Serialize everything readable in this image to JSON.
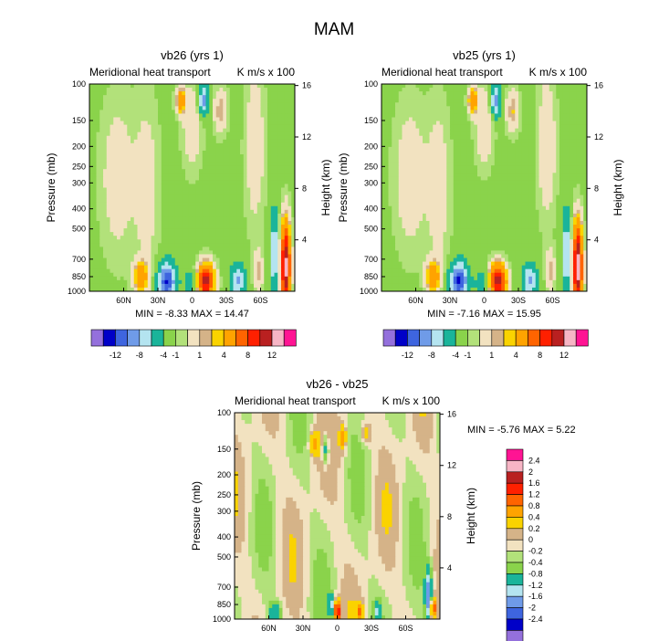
{
  "figure_title": "MAM",
  "colors": {
    "levels_12": [
      "#9470dc",
      "#0000c8",
      "#3e65df",
      "#6f9be8",
      "#b4e4f0",
      "#1ab49a",
      "#8ad34b",
      "#b2e17a",
      "#f2e2c0",
      "#d5b388",
      "#fad300",
      "#ffa300",
      "#ff6400",
      "#ff2000",
      "#b92020",
      "#f7b5c5",
      "#ff1493"
    ],
    "levels_diff": [
      "#9470dc",
      "#0000c8",
      "#3e65df",
      "#6f9be8",
      "#b4e4f0",
      "#1ab49a",
      "#8ad34b",
      "#b2e17a",
      "#f2e2c0",
      "#d5b388",
      "#fad300",
      "#ffa300",
      "#ff6400",
      "#ff2000",
      "#b92020",
      "#f7b5c5",
      "#ff1493"
    ]
  },
  "chart_data": [
    {
      "type": "heatmap",
      "title": "vb26 (yrs 1)",
      "left_string": "Meridional heat transport",
      "right_string": "K m/s x 100",
      "ylabel": "Pressure (mb)",
      "ylabel_right": "Height (km)",
      "x_ticks": [
        "60N",
        "30N",
        "0",
        "30S",
        "60S"
      ],
      "x_tick_lats": [
        60,
        30,
        0,
        -30,
        -60
      ],
      "xlim": [
        90,
        -90
      ],
      "y_ticks": [
        "100",
        "150",
        "200",
        "250",
        "300",
        "400",
        "500",
        "700",
        "850",
        "1000"
      ],
      "y_tick_values": [
        100,
        150,
        200,
        250,
        300,
        400,
        500,
        700,
        850,
        1000
      ],
      "ylim": [
        100,
        1000
      ],
      "height_ticks": [
        "16",
        "12",
        "8",
        "4"
      ],
      "height_tick_values": [
        16,
        12,
        8,
        4
      ],
      "min_label": "MIN = -8.33  MAX = 14.47",
      "min": -8.33,
      "max": 14.47,
      "colorbar_orientation": "horizontal",
      "colorbar_labels": [
        "-12",
        "-8",
        "-4",
        "-1",
        "1",
        "4",
        "8",
        "12"
      ],
      "levels": [
        -12,
        -10,
        -8,
        -6,
        -4,
        -2,
        -1,
        -0.5,
        0.5,
        1,
        2,
        4,
        6,
        8,
        10,
        12
      ]
    },
    {
      "type": "heatmap",
      "title": "vb25 (yrs 1)",
      "left_string": "Meridional heat transport",
      "right_string": "K m/s x 100",
      "ylabel": "Pressure (mb)",
      "ylabel_right": "Height (km)",
      "x_ticks": [
        "60N",
        "30N",
        "0",
        "30S",
        "60S"
      ],
      "x_tick_lats": [
        60,
        30,
        0,
        -30,
        -60
      ],
      "xlim": [
        90,
        -90
      ],
      "y_ticks": [
        "100",
        "150",
        "200",
        "250",
        "300",
        "400",
        "500",
        "700",
        "850",
        "1000"
      ],
      "y_tick_values": [
        100,
        150,
        200,
        250,
        300,
        400,
        500,
        700,
        850,
        1000
      ],
      "ylim": [
        100,
        1000
      ],
      "height_ticks": [
        "16",
        "12",
        "8",
        "4"
      ],
      "height_tick_values": [
        16,
        12,
        8,
        4
      ],
      "min_label": "MIN = -7.16  MAX = 15.95",
      "min": -7.16,
      "max": 15.95,
      "colorbar_orientation": "horizontal",
      "colorbar_labels": [
        "-12",
        "-8",
        "-4",
        "-1",
        "1",
        "4",
        "8",
        "12"
      ],
      "levels": [
        -12,
        -10,
        -8,
        -6,
        -4,
        -2,
        -1,
        -0.5,
        0.5,
        1,
        2,
        4,
        6,
        8,
        10,
        12
      ]
    },
    {
      "type": "heatmap",
      "title": "vb26 - vb25",
      "left_string": "Meridional heat transport",
      "right_string": "K m/s x 100",
      "ylabel": "Pressure (mb)",
      "ylabel_right": "Height (km)",
      "x_ticks": [
        "60N",
        "30N",
        "0",
        "30S",
        "60S"
      ],
      "x_tick_lats": [
        60,
        30,
        0,
        -30,
        -60
      ],
      "xlim": [
        90,
        -90
      ],
      "y_ticks": [
        "100",
        "150",
        "200",
        "250",
        "300",
        "400",
        "500",
        "700",
        "850",
        "1000"
      ],
      "y_tick_values": [
        100,
        150,
        200,
        250,
        300,
        400,
        500,
        700,
        850,
        1000
      ],
      "ylim": [
        100,
        1000
      ],
      "height_ticks": [
        "16",
        "12",
        "8",
        "4"
      ],
      "height_tick_values": [
        16,
        12,
        8,
        4
      ],
      "min_label": "MIN =  -5.76  MAX =   5.22",
      "min": -5.76,
      "max": 5.22,
      "colorbar_orientation": "vertical",
      "colorbar_labels": [
        "2.4",
        "2",
        "1.6",
        "1.2",
        "0.8",
        "0.4",
        "0.2",
        "0",
        "-0.2",
        "-0.4",
        "-0.8",
        "-1.2",
        "-1.6",
        "-2",
        "-2.4"
      ],
      "levels": [
        -2.4,
        -2,
        -1.6,
        -1.2,
        -0.8,
        -0.4,
        -0.2,
        0,
        0.2,
        0.4,
        0.8,
        1.2,
        1.6,
        2,
        2.4
      ]
    }
  ]
}
